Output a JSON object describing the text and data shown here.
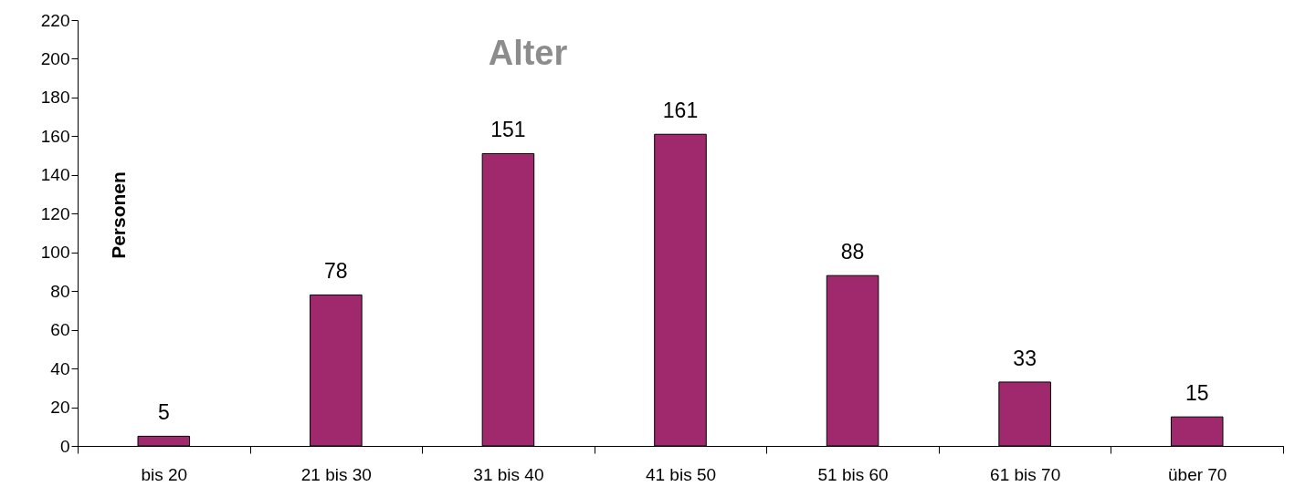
{
  "chart_data": {
    "type": "bar",
    "title": "Alter",
    "ylabel": "Personen",
    "categories": [
      "bis 20",
      "21 bis 30",
      "31 bis 40",
      "41 bis 50",
      "51 bis 60",
      "61 bis 70",
      "über 70"
    ],
    "values": [
      5,
      78,
      151,
      161,
      88,
      33,
      15
    ],
    "color": "#a0296e",
    "ylim": [
      0,
      220
    ],
    "yticks": [
      0,
      20,
      40,
      60,
      80,
      100,
      120,
      140,
      160,
      180,
      200,
      220
    ],
    "data_labels": true,
    "grid": false
  }
}
